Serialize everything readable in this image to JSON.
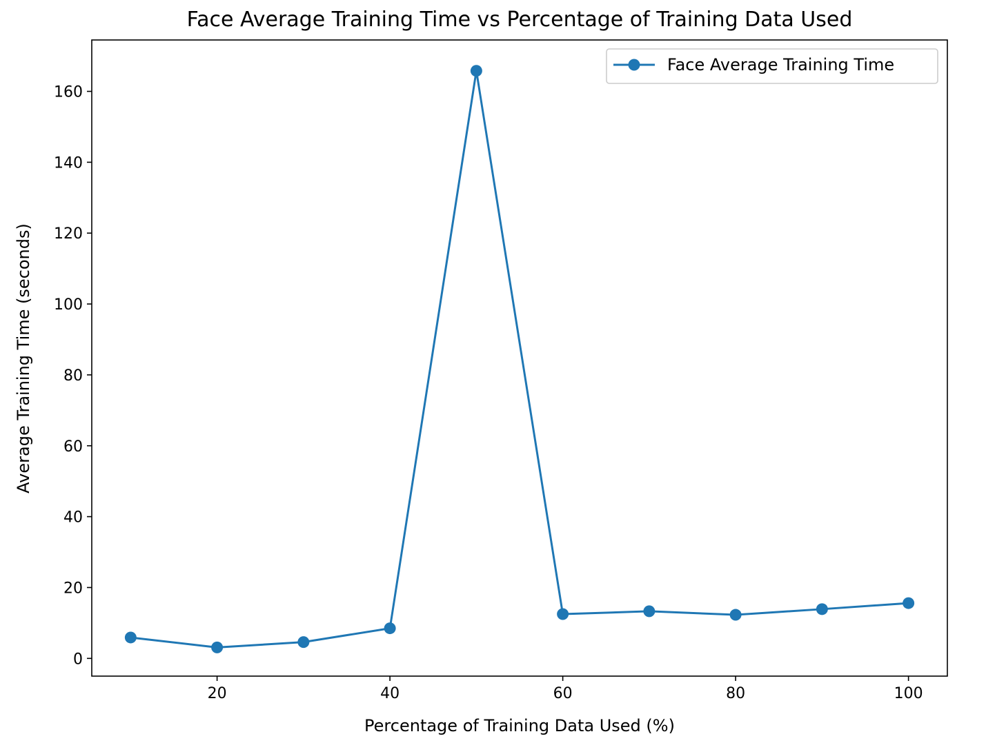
{
  "chart_data": {
    "type": "line",
    "title": "Face Average Training Time vs Percentage of Training Data Used",
    "xlabel": "Percentage of Training Data Used (%)",
    "ylabel": "Average Training Time (seconds)",
    "xlim": [
      5.5,
      104.5
    ],
    "ylim": [
      -5,
      174.5
    ],
    "xticks": [
      20,
      40,
      60,
      80,
      100
    ],
    "yticks": [
      0,
      20,
      40,
      60,
      80,
      100,
      120,
      140,
      160
    ],
    "grid": false,
    "legend_position": "top-right",
    "series": [
      {
        "name": "Face Average Training Time",
        "color": "#1f77b4",
        "marker": "circle",
        "x": [
          10,
          20,
          30,
          40,
          50,
          60,
          70,
          80,
          90,
          100
        ],
        "y": [
          5.9,
          3.1,
          4.6,
          8.5,
          165.8,
          12.5,
          13.3,
          12.3,
          13.9,
          15.6
        ]
      }
    ]
  }
}
